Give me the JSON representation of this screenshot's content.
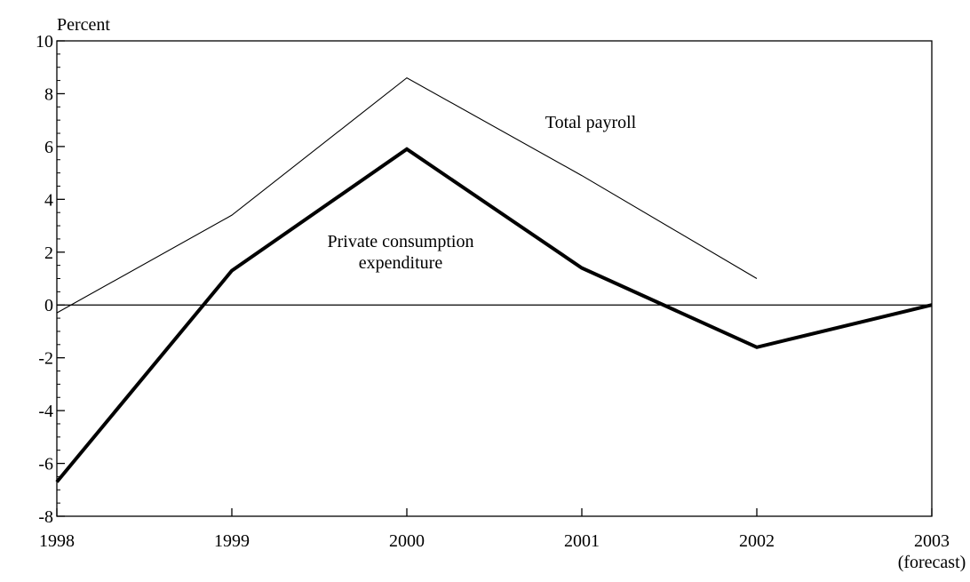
{
  "chart_data": {
    "type": "line",
    "title": "",
    "xlabel": "",
    "ylabel": "Percent",
    "categories": [
      "1998",
      "1999",
      "2000",
      "2001",
      "2002",
      "2003"
    ],
    "x_tick_sublabels": [
      "",
      "",
      "",
      "",
      "",
      "(forecast)"
    ],
    "ylim": [
      -8,
      10
    ],
    "y_ticks": [
      10,
      8,
      6,
      4,
      2,
      0,
      -2,
      -4,
      -6,
      -8
    ],
    "y_tick_labels": [
      "10",
      "8",
      "6",
      "4",
      "2",
      "0",
      "-2",
      "-4",
      "-6",
      "-8"
    ],
    "grid": false,
    "zero_line": true,
    "series": [
      {
        "name": "Total payroll",
        "label_lines": [
          "Total payroll"
        ],
        "values": [
          -0.3,
          3.4,
          8.6,
          4.9,
          1.0,
          null
        ],
        "color": "#000000",
        "weight": "thin"
      },
      {
        "name": "Private consumption expenditure",
        "label_lines": [
          "Private consumption",
          "expenditure"
        ],
        "values": [
          -6.7,
          1.3,
          5.9,
          1.4,
          -1.6,
          0.0
        ],
        "color": "#000000",
        "weight": "thick"
      }
    ]
  }
}
